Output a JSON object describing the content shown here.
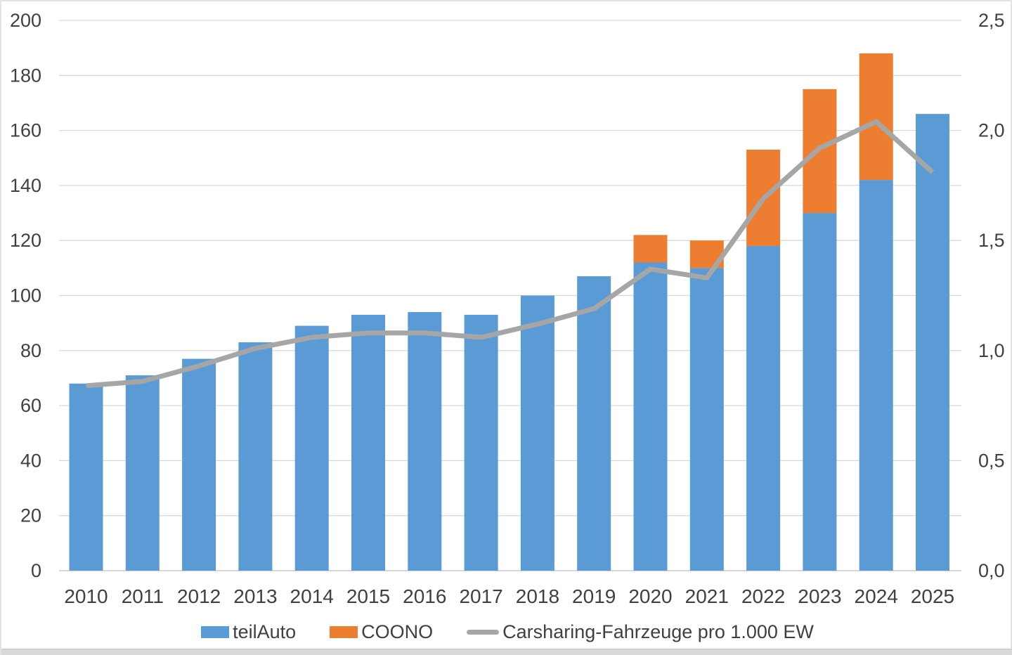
{
  "colors": {
    "teilauto_blue": "#5B9BD5",
    "coono_orange": "#ED7D31",
    "line_gray": "#A6A6A6",
    "gridline": "#D9D9D9",
    "axis_line": "#BFBFBF",
    "label_text": "#404040"
  },
  "chart_data": {
    "type": "bar",
    "subtype": "stacked-bars-with-line-combo",
    "title": "",
    "xlabel": "",
    "ylabel": "",
    "grid": true,
    "legend_position": "bottom",
    "categories": [
      "2010",
      "2011",
      "2012",
      "2013",
      "2014",
      "2015",
      "2016",
      "2017",
      "2018",
      "2019",
      "2020",
      "2021",
      "2022",
      "2023",
      "2024",
      "2025"
    ],
    "series": [
      {
        "name": "teilAuto",
        "type": "bar",
        "axis": "left",
        "color": "#5B9BD5",
        "values": [
          68,
          71,
          77,
          83,
          89,
          93,
          94,
          93,
          100,
          107,
          112,
          110,
          118,
          130,
          142,
          166
        ]
      },
      {
        "name": "COONO",
        "type": "bar",
        "axis": "left",
        "color": "#ED7D31",
        "values": [
          0,
          0,
          0,
          0,
          0,
          0,
          0,
          0,
          0,
          0,
          10,
          10,
          35,
          45,
          46,
          0
        ]
      },
      {
        "name": "Carsharing-Fahrzeuge pro 1.000 EW",
        "type": "line",
        "axis": "right",
        "color": "#A6A6A6",
        "values": [
          0.84,
          0.86,
          0.93,
          1.01,
          1.06,
          1.08,
          1.08,
          1.06,
          1.12,
          1.19,
          1.37,
          1.33,
          1.69,
          1.92,
          2.04,
          1.81
        ]
      }
    ],
    "stacked_totals": [
      68,
      71,
      77,
      83,
      89,
      93,
      94,
      93,
      100,
      107,
      122,
      120,
      153,
      175,
      188,
      166
    ],
    "left_axis": {
      "min": 0,
      "max": 200,
      "step": 20,
      "labels": [
        "0",
        "20",
        "40",
        "60",
        "80",
        "100",
        "120",
        "140",
        "160",
        "180",
        "200"
      ]
    },
    "right_axis": {
      "min": 0,
      "max": 2.5,
      "step": 0.5,
      "labels": [
        "0,0",
        "0,5",
        "1,0",
        "1,5",
        "2,0",
        "2,5"
      ]
    }
  }
}
